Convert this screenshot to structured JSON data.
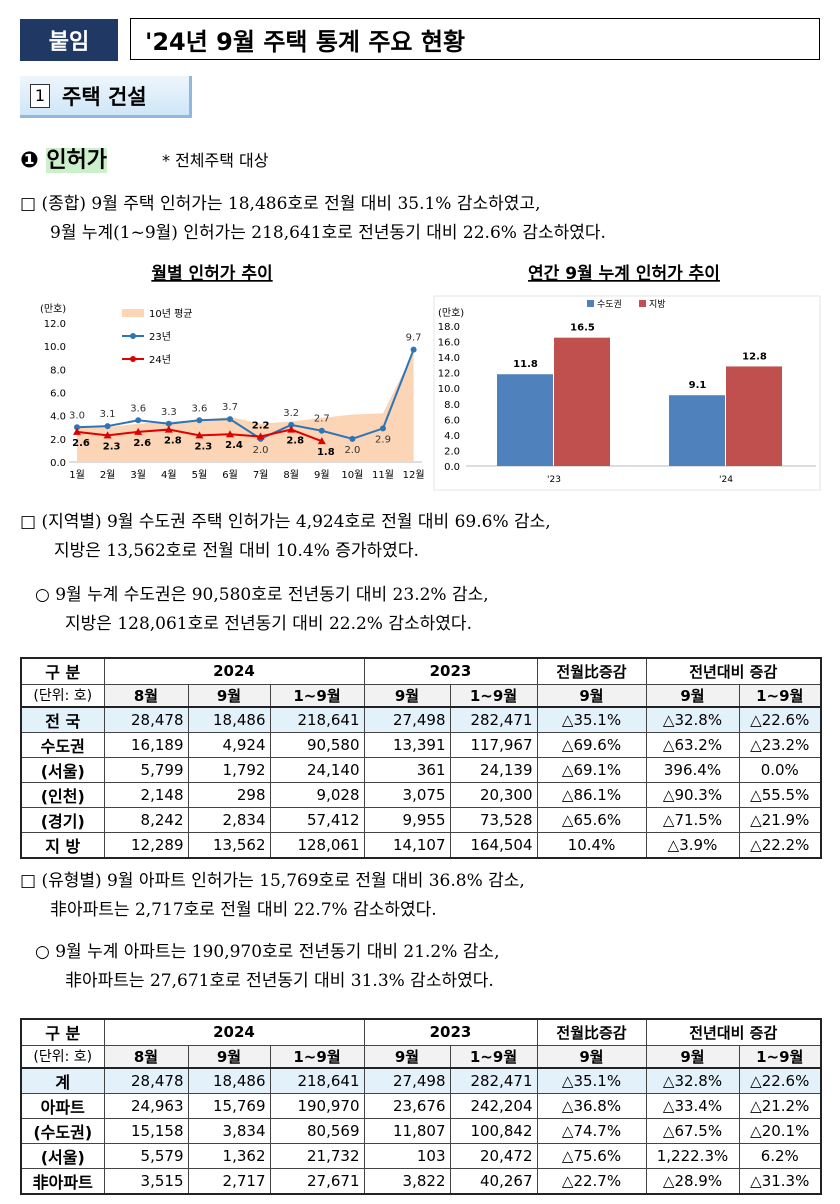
{
  "header": {
    "badge": "붙임",
    "title": "'24년 9월 주택 통계 주요 현황"
  },
  "section": {
    "number": "1",
    "title": "주택 건설"
  },
  "subsection": {
    "marker": "❶",
    "title": "인허가",
    "note": "* 전체주택 대상"
  },
  "paragraphs": [
    {
      "lines": [
        "□ (종합) 9월 주택 인허가는 18,486호로 전월 대비 35.1% 감소하였고,",
        "9월 누계(1~9월) 인허가는 218,641호로 전년동기 대비 22.6% 감소하였다."
      ]
    },
    {
      "lines": [
        "□ (지역별) 9월 수도권 주택 인허가는 4,924호로 전월 대비 69.6% 감소,",
        "지방은 13,562호로 전월 대비 10.4% 증가하였다."
      ]
    },
    {
      "lines": [
        "○ 9월 누계 수도권은 90,580호로 전년동기 대비 23.2% 감소,",
        "지방은 128,061호로 전년동기 대비 22.2% 감소하였다."
      ]
    },
    {
      "lines": [
        "□ (유형별) 9월 아파트 인허가는 15,769호로 전월 대비 36.8% 감소,",
        "非아파트는 2,717호로 전월 대비 22.7% 감소하였다."
      ]
    },
    {
      "lines": [
        "○ 9월 누계 아파트는 190,970호로 전년동기 대비 21.2% 감소,",
        "非아파트는 27,671호로 전년동기 대비 31.3% 감소하였다."
      ]
    }
  ],
  "chart_data": [
    {
      "type": "line",
      "title": "월별 인허가 추이",
      "y_unit": "(만호)",
      "categories": [
        "1월",
        "2월",
        "3월",
        "4월",
        "5월",
        "6월",
        "7월",
        "8월",
        "9월",
        "10월",
        "11월",
        "12월"
      ],
      "series": [
        {
          "name": "10년 평균",
          "color": "#fbd5b5",
          "style": "area",
          "values": [
            3.1,
            3.0,
            3.3,
            3.5,
            3.6,
            3.9,
            3.3,
            3.5,
            3.8,
            4.1,
            4.2,
            9.5
          ]
        },
        {
          "name": "23년",
          "color": "#2e75b6",
          "marker": "circle",
          "values": [
            3.0,
            3.1,
            3.6,
            3.3,
            3.6,
            3.7,
            2.0,
            3.2,
            2.7,
            2.0,
            2.9,
            9.7
          ],
          "value_labels": [
            "3.0",
            "3.1",
            "3.6",
            "3.3",
            "3.6",
            "3.7",
            "2.0",
            "3.2",
            "2.7",
            "2.0",
            "2.9",
            "9.7"
          ]
        },
        {
          "name": "24년",
          "color": "#e00000",
          "marker": "triangle",
          "values": [
            2.6,
            2.3,
            2.6,
            2.8,
            2.3,
            2.4,
            2.2,
            2.8,
            1.8,
            null,
            null,
            null
          ]
        }
      ],
      "ylim": [
        0,
        12
      ],
      "yticks": [
        {
          "value": 0,
          "label": "0.0"
        },
        {
          "value": 2,
          "label": "2.0"
        },
        {
          "value": 4,
          "label": "4.0"
        },
        {
          "value": 6,
          "label": "6.0"
        },
        {
          "value": 8,
          "label": "8.0"
        },
        {
          "value": 10,
          "label": "10.0"
        },
        {
          "value": 12,
          "label": "12.0"
        }
      ],
      "grid": false
    },
    {
      "type": "bar",
      "title": "연간 9월 누계 인허가 추이",
      "y_unit": "(만호)",
      "categories": [
        "'23",
        "'24"
      ],
      "series": [
        {
          "name": "수도권",
          "color": "#4f81bd",
          "values": [
            11.8,
            9.1
          ]
        },
        {
          "name": "지방",
          "color": "#c0504d",
          "values": [
            16.5,
            12.8
          ]
        }
      ],
      "ylim": [
        0,
        18
      ],
      "yticks": [
        {
          "value": 0,
          "label": "0.0"
        },
        {
          "value": 2,
          "label": "2.0"
        },
        {
          "value": 4,
          "label": "4.0"
        },
        {
          "value": 6,
          "label": "6.0"
        },
        {
          "value": 8,
          "label": "8.0"
        },
        {
          "value": 10,
          "label": "10.0"
        },
        {
          "value": 12,
          "label": "12.0"
        },
        {
          "value": 14,
          "label": "14.0"
        },
        {
          "value": 16,
          "label": "16.0"
        },
        {
          "value": 18,
          "label": "18.0"
        }
      ],
      "grid": false
    }
  ],
  "tables": [
    {
      "header": {
        "label": [
          "구 분",
          "(단위: 호)"
        ],
        "groups": [
          "2024",
          "2023",
          "전월比증감",
          "전년대비 증감"
        ],
        "columns": [
          "8월",
          "9월",
          "1~9월",
          "9월",
          "1~9월",
          "9월",
          "9월",
          "1~9월"
        ]
      },
      "rows": [
        [
          "전 국",
          "28,478",
          "18,486",
          "218,641",
          "27,498",
          "282,471",
          "△35.1%",
          "△32.8%",
          "△22.6%"
        ],
        [
          "수도권",
          "16,189",
          "4,924",
          "90,580",
          "13,391",
          "117,967",
          "△69.6%",
          "△63.2%",
          "△23.2%"
        ],
        [
          "(서울)",
          "5,799",
          "1,792",
          "24,140",
          "361",
          "24,139",
          "△69.1%",
          "396.4%",
          "0.0%"
        ],
        [
          "(인천)",
          "2,148",
          "298",
          "9,028",
          "3,075",
          "20,300",
          "△86.1%",
          "△90.3%",
          "△55.5%"
        ],
        [
          "(경기)",
          "8,242",
          "2,834",
          "57,412",
          "9,955",
          "73,528",
          "△65.6%",
          "△71.5%",
          "△21.9%"
        ],
        [
          "지 방",
          "12,289",
          "13,562",
          "128,061",
          "14,107",
          "164,504",
          "10.4%",
          "△3.9%",
          "△22.2%"
        ]
      ]
    },
    {
      "header": {
        "label": [
          "구 분",
          "(단위: 호)"
        ],
        "groups": [
          "2024",
          "2023",
          "전월比증감",
          "전년대비 증감"
        ],
        "columns": [
          "8월",
          "9월",
          "1~9월",
          "9월",
          "1~9월",
          "9월",
          "9월",
          "1~9월"
        ]
      },
      "rows": [
        [
          "계",
          "28,478",
          "18,486",
          "218,641",
          "27,498",
          "282,471",
          "△35.1%",
          "△32.8%",
          "△22.6%"
        ],
        [
          "아파트",
          "24,963",
          "15,769",
          "190,970",
          "23,676",
          "242,204",
          "△36.8%",
          "△33.4%",
          "△21.2%"
        ],
        [
          "(수도권)",
          "15,158",
          "3,834",
          "80,569",
          "11,807",
          "100,842",
          "△74.7%",
          "△67.5%",
          "△20.1%"
        ],
        [
          "(서울)",
          "5,579",
          "1,362",
          "21,732",
          "103",
          "20,472",
          "△75.6%",
          "1,222.3%",
          "6.2%"
        ],
        [
          "非아파트",
          "3,515",
          "2,717",
          "27,671",
          "3,822",
          "40,267",
          "△22.7%",
          "△28.9%",
          "△31.3%"
        ]
      ]
    }
  ]
}
